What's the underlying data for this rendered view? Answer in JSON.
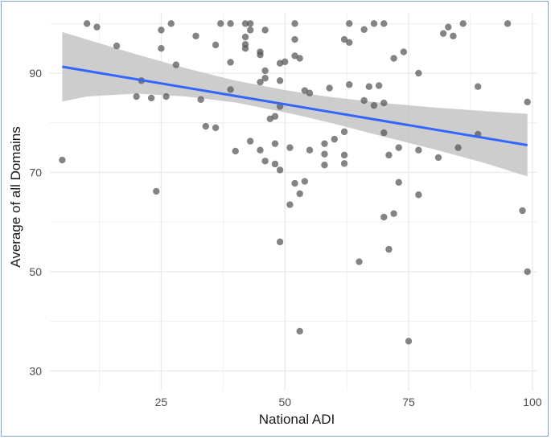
{
  "chart_data": {
    "type": "scatter",
    "title": "",
    "xlabel": "National ADI",
    "ylabel": "Average of all Domains",
    "xlim": [
      2.5,
      101
    ],
    "ylim": [
      26,
      102
    ],
    "x_ticks": [
      25,
      50,
      75,
      100
    ],
    "x_tick_labels": [
      "25",
      "50",
      "75",
      "100"
    ],
    "y_ticks": [
      30,
      50,
      70,
      90
    ],
    "y_tick_labels": [
      "30",
      "50",
      "70",
      "90"
    ],
    "grid": true,
    "points": [
      [
        5,
        72.5
      ],
      [
        10,
        100
      ],
      [
        12,
        99.3
      ],
      [
        16,
        95.5
      ],
      [
        20,
        85.3
      ],
      [
        21,
        88.5
      ],
      [
        23,
        85
      ],
      [
        24,
        66.2
      ],
      [
        25,
        98.7
      ],
      [
        25,
        95
      ],
      [
        26,
        85.3
      ],
      [
        27,
        100
      ],
      [
        28,
        91.7
      ],
      [
        32,
        97.5
      ],
      [
        33,
        84.7
      ],
      [
        34,
        79.3
      ],
      [
        36,
        79
      ],
      [
        36,
        95.7
      ],
      [
        37,
        100
      ],
      [
        39,
        100
      ],
      [
        39,
        92.2
      ],
      [
        39,
        86.7
      ],
      [
        40,
        74.3
      ],
      [
        42,
        100
      ],
      [
        42,
        97.3
      ],
      [
        42,
        95.8
      ],
      [
        42,
        95
      ],
      [
        43,
        100
      ],
      [
        43,
        98.7
      ],
      [
        43,
        76.3
      ],
      [
        45,
        93.7
      ],
      [
        45,
        94.3
      ],
      [
        45,
        88.2
      ],
      [
        45,
        74.5
      ],
      [
        46,
        98.7
      ],
      [
        46,
        90.5
      ],
      [
        46,
        89
      ],
      [
        46,
        72.3
      ],
      [
        47,
        80.8
      ],
      [
        48,
        81.3
      ],
      [
        48,
        75.8
      ],
      [
        48,
        71.7
      ],
      [
        49,
        92
      ],
      [
        49,
        88.5
      ],
      [
        49,
        83.3
      ],
      [
        49,
        70.5
      ],
      [
        49,
        56
      ],
      [
        50,
        92.3
      ],
      [
        51,
        75
      ],
      [
        51,
        63.5
      ],
      [
        52,
        100
      ],
      [
        52,
        96.8
      ],
      [
        52,
        93.5
      ],
      [
        52,
        67.8
      ],
      [
        53,
        93
      ],
      [
        53,
        65.7
      ],
      [
        53,
        38
      ],
      [
        54,
        86.5
      ],
      [
        54,
        68.2
      ],
      [
        55,
        86
      ],
      [
        55,
        74.5
      ],
      [
        58,
        75.8
      ],
      [
        58,
        73.7
      ],
      [
        58,
        71.5
      ],
      [
        59,
        87
      ],
      [
        60,
        76.7
      ],
      [
        62,
        96.8
      ],
      [
        62,
        78.2
      ],
      [
        62,
        73.5
      ],
      [
        62,
        71.8
      ],
      [
        63,
        100
      ],
      [
        63,
        96.2
      ],
      [
        63,
        87.7
      ],
      [
        65,
        52
      ],
      [
        66,
        98.8
      ],
      [
        66,
        84.5
      ],
      [
        67,
        87.3
      ],
      [
        68,
        100
      ],
      [
        68,
        83.5
      ],
      [
        69,
        87.5
      ],
      [
        70,
        100
      ],
      [
        70,
        84
      ],
      [
        70,
        78
      ],
      [
        70,
        61
      ],
      [
        71,
        73.5
      ],
      [
        71,
        54.5
      ],
      [
        72,
        93
      ],
      [
        72,
        61.7
      ],
      [
        73,
        75
      ],
      [
        73,
        68
      ],
      [
        74,
        94.3
      ],
      [
        75,
        36
      ],
      [
        77,
        90
      ],
      [
        77,
        74.5
      ],
      [
        77,
        65.5
      ],
      [
        81,
        73
      ],
      [
        82,
        98
      ],
      [
        83,
        99.3
      ],
      [
        84,
        97.5
      ],
      [
        85,
        75
      ],
      [
        86,
        100
      ],
      [
        89,
        87.3
      ],
      [
        89,
        77.7
      ],
      [
        95,
        100
      ],
      [
        98,
        62.3
      ],
      [
        99,
        84.2
      ],
      [
        99,
        50
      ]
    ],
    "regression": {
      "x": [
        5,
        99
      ],
      "y": [
        91.3,
        75.5
      ]
    },
    "confidence_band": {
      "x": [
        5,
        10,
        20,
        30,
        40,
        50,
        55,
        60,
        70,
        80,
        90,
        99
      ],
      "lower": [
        84.3,
        85.3,
        85.9,
        85.3,
        84.1,
        82.1,
        81,
        79.8,
        77.2,
        74.7,
        72,
        69.2
      ],
      "upper": [
        98.3,
        96.8,
        93.8,
        91,
        88.5,
        86.6,
        85.8,
        85.1,
        84,
        83.1,
        82.4,
        81.8
      ]
    },
    "colors": {
      "points": "#555555",
      "regression": "#3366ff",
      "band": "#c4c4c4",
      "grid": "#ebebeb"
    }
  }
}
